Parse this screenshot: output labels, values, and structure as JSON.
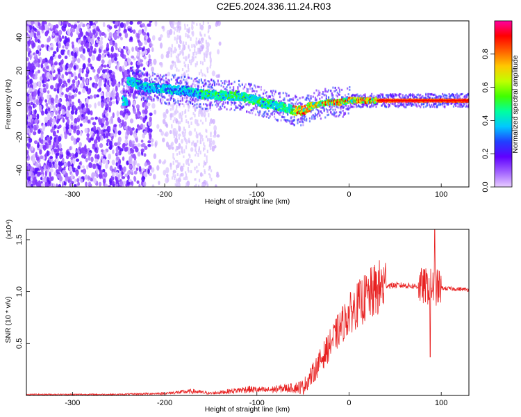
{
  "title": "C2E5.2024.336.11.24.R03",
  "chart_data": [
    {
      "type": "heatmap",
      "xlabel": "Height of straight line (km)",
      "ylabel": "Frequency (Hz)",
      "xlim": [
        -350,
        130
      ],
      "ylim": [
        -50,
        50
      ],
      "xticks": [
        -300,
        -200,
        -100,
        0,
        100
      ],
      "yticks": [
        -40,
        -20,
        0,
        20,
        40
      ],
      "colorbar": {
        "label": "Normalized spectral amplitude",
        "range": [
          0,
          1
        ],
        "ticks": [
          "0.0",
          "0.2",
          "0.4",
          "0.6",
          "0.8"
        ],
        "colors": [
          "#e8ccff",
          "#a060ff",
          "#6000ff",
          "#2040ff",
          "#00c8ff",
          "#00ffa0",
          "#40ff00",
          "#c0ff00",
          "#ffc800",
          "#ff6000",
          "#ff0000",
          "#ff00a0"
        ]
      },
      "signal_track": [
        {
          "x": -240,
          "f": 14
        },
        {
          "x": -220,
          "f": 10
        },
        {
          "x": -200,
          "f": 9
        },
        {
          "x": -180,
          "f": 8
        },
        {
          "x": -160,
          "f": 6
        },
        {
          "x": -140,
          "f": 5
        },
        {
          "x": -120,
          "f": 5
        },
        {
          "x": -100,
          "f": 2
        },
        {
          "x": -90,
          "f": 0
        },
        {
          "x": -80,
          "f": -1
        },
        {
          "x": -70,
          "f": -2
        },
        {
          "x": -60,
          "f": -4
        },
        {
          "x": -50,
          "f": -4
        },
        {
          "x": -40,
          "f": -1
        },
        {
          "x": -30,
          "f": 0
        },
        {
          "x": -20,
          "f": 1
        },
        {
          "x": -10,
          "f": 1
        },
        {
          "x": 0,
          "f": 2
        },
        {
          "x": 20,
          "f": 2
        },
        {
          "x": 40,
          "f": 2
        },
        {
          "x": 60,
          "f": 2
        },
        {
          "x": 80,
          "f": 2
        },
        {
          "x": 100,
          "f": 2
        },
        {
          "x": 130,
          "f": 2
        }
      ]
    },
    {
      "type": "line",
      "xlabel": "Height of straight line (km)",
      "ylabel": "SNR (10 * v/v)",
      "multiplier": "(x10⁴)",
      "xlim": [
        -350,
        130
      ],
      "ylim": [
        0,
        1.6
      ],
      "xticks": [
        -300,
        -200,
        -100,
        0,
        100
      ],
      "yticks": [
        "0.5",
        "1.0",
        "1.5"
      ],
      "color": "#e82020",
      "envelope": [
        {
          "x": -350,
          "y": 0.01
        },
        {
          "x": -250,
          "y": 0.01
        },
        {
          "x": -200,
          "y": 0.02
        },
        {
          "x": -170,
          "y": 0.04
        },
        {
          "x": -150,
          "y": 0.02
        },
        {
          "x": -130,
          "y": 0.04
        },
        {
          "x": -110,
          "y": 0.06
        },
        {
          "x": -90,
          "y": 0.05
        },
        {
          "x": -70,
          "y": 0.07
        },
        {
          "x": -50,
          "y": 0.08
        },
        {
          "x": -40,
          "y": 0.2
        },
        {
          "x": -30,
          "y": 0.35
        },
        {
          "x": -20,
          "y": 0.5
        },
        {
          "x": -10,
          "y": 0.65
        },
        {
          "x": 0,
          "y": 0.78
        },
        {
          "x": 10,
          "y": 0.88
        },
        {
          "x": 20,
          "y": 0.95
        },
        {
          "x": 30,
          "y": 1.02
        },
        {
          "x": 40,
          "y": 1.06
        },
        {
          "x": 60,
          "y": 1.06
        },
        {
          "x": 75,
          "y": 1.05
        },
        {
          "x": 85,
          "y": 1.05
        },
        {
          "x": 95,
          "y": 1.04
        },
        {
          "x": 105,
          "y": 1.03
        },
        {
          "x": 130,
          "y": 1.02
        }
      ],
      "peak": {
        "x": 93,
        "y": 1.6
      },
      "dip": {
        "x": 88,
        "y": 0.37
      }
    }
  ]
}
